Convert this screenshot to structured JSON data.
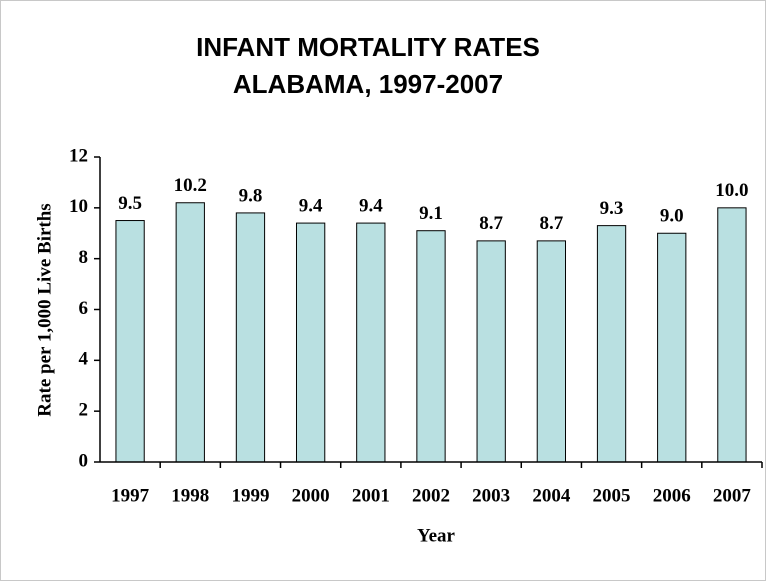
{
  "chart_data": {
    "type": "bar",
    "title": "INFANT MORTALITY RATES",
    "subtitle": "ALABAMA, 1997-2007",
    "x_label": "Year",
    "y_label": "Rate per 1,000 Live Births",
    "categories": [
      "1997",
      "1998",
      "1999",
      "2000",
      "2001",
      "2002",
      "2003",
      "2004",
      "2005",
      "2006",
      "2007"
    ],
    "values": [
      9.5,
      10.2,
      9.8,
      9.4,
      9.4,
      9.1,
      8.7,
      8.7,
      9.3,
      9.0,
      10.0
    ],
    "value_labels": [
      "9.5",
      "10.2",
      "9.8",
      "9.4",
      "9.4",
      "9.1",
      "8.7",
      "8.7",
      "9.3",
      "9.0",
      "10.0"
    ],
    "color": "#b9e0e1",
    "ylim": [
      0,
      12
    ],
    "yticks": [
      0,
      2,
      4,
      6,
      8,
      10,
      12
    ],
    "grid": false
  }
}
